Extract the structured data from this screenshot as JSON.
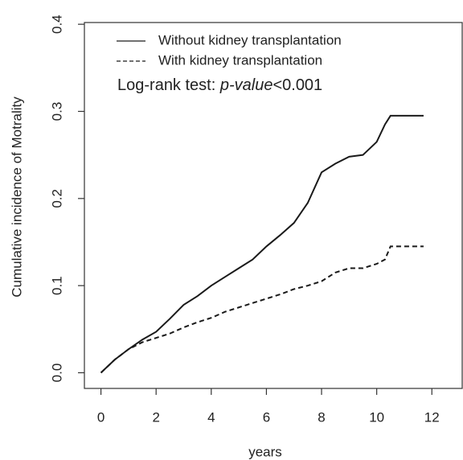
{
  "chart_data": {
    "type": "line",
    "x_label": "years",
    "y_label": "Cumulative incidence of Motrality",
    "annotation": [
      {
        "text": "Log-rank test: "
      },
      {
        "text": "p-value",
        "italic": true
      },
      {
        "text": "<0.001"
      }
    ],
    "x": [
      0,
      0.5,
      1,
      1.5,
      2,
      2.5,
      3,
      3.5,
      4,
      4.5,
      5,
      5.5,
      6,
      6.5,
      7,
      7.5,
      8,
      8.5,
      9,
      9.5,
      10,
      10.3,
      10.5,
      11.7
    ],
    "series": [
      {
        "name": "Without kidney transplantation",
        "color": "#1a1a1a",
        "linestyle": "solid",
        "values": [
          0,
          0.015,
          0.027,
          0.038,
          0.047,
          0.062,
          0.078,
          0.088,
          0.1,
          0.11,
          0.12,
          0.13,
          0.145,
          0.158,
          0.172,
          0.195,
          0.23,
          0.24,
          0.248,
          0.25,
          0.265,
          0.285,
          0.295,
          0.295
        ]
      },
      {
        "name": "With kidney transplantation",
        "color": "#1a1a1a",
        "linestyle": "dashed",
        "values": [
          0,
          0.015,
          0.027,
          0.035,
          0.04,
          0.045,
          0.052,
          0.058,
          0.063,
          0.07,
          0.075,
          0.08,
          0.085,
          0.09,
          0.096,
          0.1,
          0.105,
          0.115,
          0.12,
          0.12,
          0.125,
          0.13,
          0.145,
          0.145
        ]
      }
    ],
    "xlim": [
      -0.6,
      13.1
    ],
    "ylim": [
      -0.018,
      0.402
    ],
    "xticks": [
      0,
      2,
      4,
      6,
      8,
      10,
      12
    ],
    "yticks": [
      {
        "value": 0,
        "label": "0.0"
      },
      0.1,
      0.2,
      0.3,
      0.4
    ],
    "legend": "top-left"
  }
}
